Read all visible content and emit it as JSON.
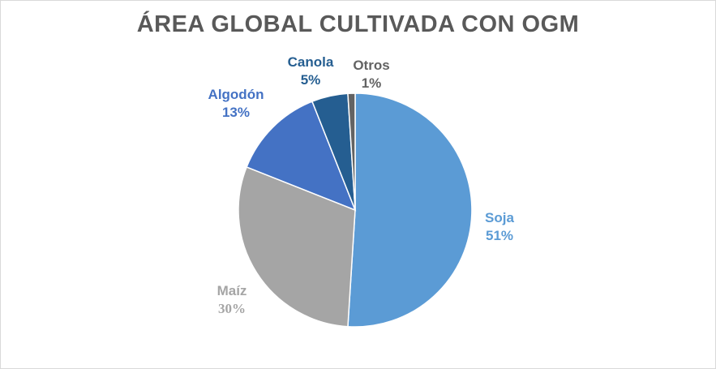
{
  "chart_data": {
    "type": "pie",
    "title": "ÁREA GLOBAL CULTIVADA CON OGM",
    "slices": [
      {
        "name": "Soja",
        "value": 51,
        "label": "51%",
        "color": "#5b9bd5"
      },
      {
        "name": "Maíz",
        "value": 30,
        "label": "30%",
        "color": "#a5a5a5"
      },
      {
        "name": "Algodón",
        "value": 13,
        "label": "13%",
        "color": "#4472c4"
      },
      {
        "name": "Canola",
        "value": 5,
        "label": "5%",
        "color": "#255e91"
      },
      {
        "name": "Otros",
        "value": 1,
        "label": "1%",
        "color": "#636363"
      }
    ],
    "legend": "none",
    "data_labels": "outside"
  }
}
